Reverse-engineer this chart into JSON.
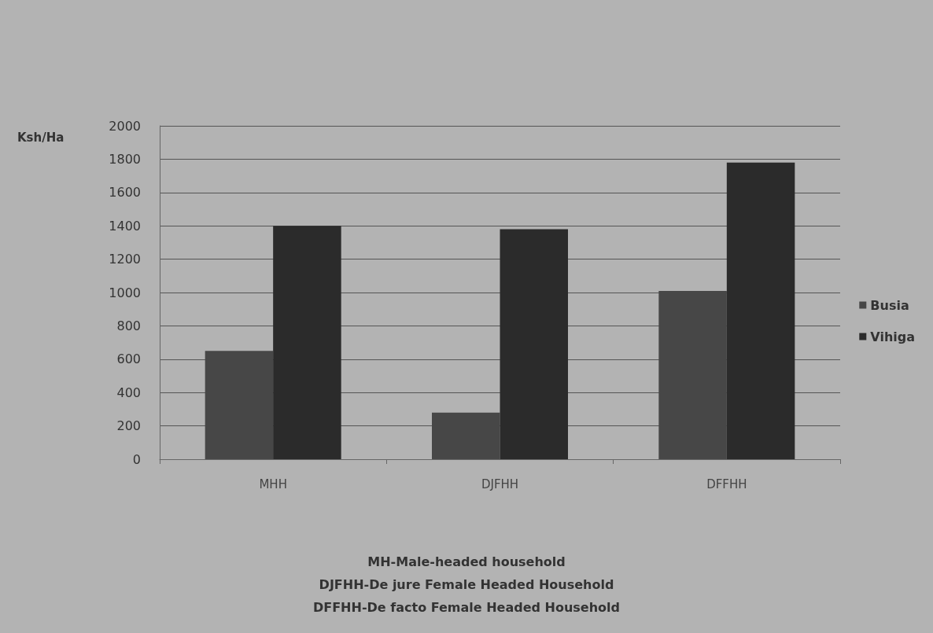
{
  "chart_data": {
    "type": "bar",
    "ylabel": "Ksh/Ha",
    "categories": [
      "MHH",
      "DJFHH",
      "DFFHH"
    ],
    "series": [
      {
        "name": "Busia",
        "color": "#474747",
        "values": [
          650,
          280,
          1010
        ]
      },
      {
        "name": "Vihiga",
        "color": "#2b2b2b",
        "values": [
          1400,
          1380,
          1780
        ]
      }
    ],
    "ylim": [
      0,
      2000
    ],
    "yticks": [
      0,
      200,
      400,
      600,
      800,
      1000,
      1200,
      1400,
      1600,
      1800,
      2000
    ],
    "grid": "y",
    "legend": "right",
    "annotations": [
      "MH-Male-headed household",
      "DJFHH-De jure Female Headed Household",
      "DFFHH-De facto Female Headed Household"
    ]
  }
}
